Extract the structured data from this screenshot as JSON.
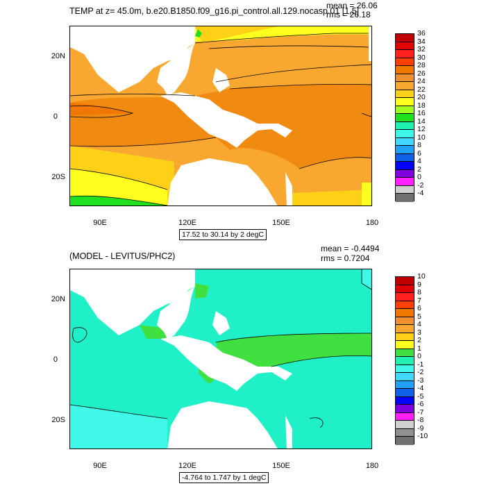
{
  "panel1": {
    "title": "TEMP at z=  45.0m, b.e20.B1850.f09_g16.pi_control.all.129.nocasp.01 [1,5]",
    "mean": "mean = 26.06",
    "rms": "rms = 26.18",
    "range": "17.52 to 30.14 by 2 degC",
    "colorbar_labels": [
      "36",
      "34",
      "32",
      "30",
      "28",
      "26",
      "24",
      "22",
      "20",
      "18",
      "16",
      "14",
      "12",
      "10",
      "8",
      "6",
      "4",
      "2",
      "0",
      "-2",
      "-4"
    ],
    "colorbar_colors": [
      "#c00000",
      "#e00000",
      "#ff2020",
      "#ff4000",
      "#f07800",
      "#f09030",
      "#f8a830",
      "#ffd018",
      "#ffff20",
      "#a0ff20",
      "#20e020",
      "#20f0b0",
      "#40f8e8",
      "#40d8ff",
      "#20a0ff",
      "#1060e8",
      "#0000ff",
      "#8000e0",
      "#ff20ff",
      "#d0d0d0",
      "#707070"
    ]
  },
  "panel2": {
    "title": "(MODEL - LEVITUS/PHC2)",
    "mean": "mean = -0.4494",
    "rms": "rms = 0.7204",
    "range": "-4.764 to 1.747 by 1 degC",
    "colorbar_labels": [
      "10",
      "9",
      "8",
      "7",
      "6",
      "5",
      "4",
      "3",
      "2",
      "1",
      "0",
      "-1",
      "-2",
      "-3",
      "-4",
      "-5",
      "-6",
      "-7",
      "-8",
      "-9",
      "-10"
    ],
    "colorbar_colors": [
      "#c00000",
      "#e00000",
      "#ff2020",
      "#ff4000",
      "#f07800",
      "#f09030",
      "#f8a830",
      "#ffd018",
      "#ffff20",
      "#40e040",
      "#20f0b0",
      "#40f8e8",
      "#40d8ff",
      "#20a0ff",
      "#1060e8",
      "#0000ff",
      "#8000e0",
      "#ff20ff",
      "#d0d0d0",
      "#909090",
      "#707070"
    ]
  },
  "axes": {
    "x_ticks": [
      "90E",
      "120E",
      "150E",
      "180"
    ],
    "y_ticks": [
      "20N",
      "0",
      "20S"
    ]
  }
}
